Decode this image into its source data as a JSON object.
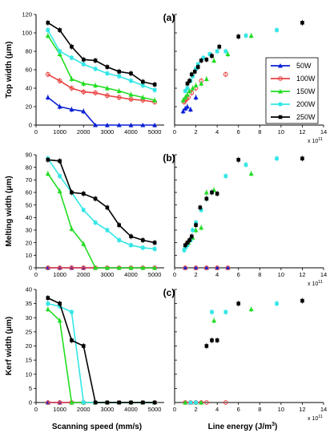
{
  "chart_data": {
    "type": "line",
    "grid": false,
    "colors": {
      "50W": "#0a1fd6",
      "100W": "#e84040",
      "150W": "#22dd22",
      "200W": "#33e6e6",
      "250W": "#000000"
    },
    "markers": {
      "50W": "triangle",
      "100W": "circle",
      "150W": "triangle",
      "200W": "square",
      "250W": "square"
    },
    "legend": {
      "placement": "top-right of panel (a) right subplot",
      "entries": [
        "50W",
        "100W",
        "150W",
        "200W",
        "250W"
      ]
    },
    "left_xlabel": "Scanning speed (mm/s)",
    "right_xlabel_main": "Line energy (J/m",
    "right_xlabel_sup": "3",
    "right_xlabel_close": ")",
    "left_xticks": [
      "0",
      "1000",
      "2000",
      "3000",
      "4000",
      "5000"
    ],
    "right_xticks": [
      "0",
      "2",
      "4",
      "6",
      "8",
      "10",
      "12",
      "14"
    ],
    "right_xmultiplier_base": "x 10",
    "right_xmultiplier_exp": "11",
    "left_xlim": [
      0,
      5400
    ],
    "right_xlim": [
      0,
      14
    ],
    "panels": [
      {
        "label": "(a)",
        "ylabel": "Top width (μm)",
        "ylim": [
          0,
          120
        ],
        "yticks": [
          "0",
          "20",
          "40",
          "60",
          "80",
          "100",
          "120"
        ],
        "left_series": [
          {
            "name": "50W",
            "x": [
              500,
              1000,
              1500,
              2000,
              2500,
              3000,
              3500,
              4000,
              4500,
              5000
            ],
            "y": [
              30,
              20,
              17,
              15,
              0,
              0,
              0,
              0,
              0,
              0
            ]
          },
          {
            "name": "100W",
            "x": [
              500,
              1000,
              1500,
              2000,
              2500,
              3000,
              3500,
              4000,
              4500,
              5000
            ],
            "y": [
              55,
              48,
              40,
              36,
              35,
              32,
              30,
              28,
              27,
              25
            ]
          },
          {
            "name": "150W",
            "x": [
              500,
              1000,
              1500,
              2000,
              2500,
              3000,
              3500,
              4000,
              4500,
              5000
            ],
            "y": [
              97,
              77,
              50,
              45,
              43,
              40,
              37,
              33,
              30,
              27
            ]
          },
          {
            "name": "200W",
            "x": [
              500,
              1000,
              1500,
              2000,
              2500,
              3000,
              3500,
              4000,
              4500,
              5000
            ],
            "y": [
              103,
              80,
              73,
              66,
              61,
              56,
              53,
              48,
              43,
              38
            ]
          },
          {
            "name": "250W",
            "x": [
              500,
              1000,
              1500,
              2000,
              2500,
              3000,
              3500,
              4000,
              4500,
              5000
            ],
            "y": [
              111,
              103,
              85,
              71,
              70,
              63,
              58,
              56,
              47,
              44
            ]
          }
        ],
        "right_series": [
          {
            "name": "50W",
            "x": [
              0.8,
              1.0,
              1.2,
              1.5,
              2.0
            ],
            "y": [
              15,
              18,
              20,
              17,
              30
            ]
          },
          {
            "name": "100W",
            "x": [
              0.9,
              1.0,
              1.1,
              1.3,
              1.6,
              2.0,
              2.5,
              4.8
            ],
            "y": [
              25,
              27,
              28,
              30,
              35,
              40,
              48,
              55
            ]
          },
          {
            "name": "150W",
            "x": [
              0.8,
              1.0,
              1.2,
              1.4,
              1.7,
              2.0,
              2.5,
              3.0,
              3.7,
              5.0,
              7.2
            ],
            "y": [
              27,
              30,
              33,
              37,
              40,
              43,
              45,
              50,
              70,
              77,
              97
            ]
          },
          {
            "name": "200W",
            "x": [
              1.0,
              1.2,
              1.5,
              1.7,
              2.0,
              2.2,
              2.7,
              3.3,
              4.0,
              4.8,
              6.7,
              9.6
            ],
            "y": [
              37,
              40,
              48,
              53,
              61,
              66,
              73,
              77,
              80,
              80,
              97,
              103
            ]
          },
          {
            "name": "250W",
            "x": [
              1.2,
              1.4,
              1.6,
              1.9,
              2.2,
              2.5,
              3.0,
              3.5,
              4.2,
              6.0,
              12.0
            ],
            "y": [
              45,
              48,
              55,
              58,
              63,
              70,
              71,
              75,
              85,
              96,
              111
            ]
          }
        ]
      },
      {
        "label": "(b)",
        "ylabel": "Melting width (μm)",
        "ylim": [
          0,
          90
        ],
        "yticks": [
          "0",
          "10",
          "20",
          "30",
          "40",
          "50",
          "60",
          "70",
          "80",
          "90"
        ],
        "left_series": [
          {
            "name": "50W",
            "x": [
              500,
              1000,
              1500,
              2000,
              2500,
              3000,
              3500,
              4000,
              4500,
              5000
            ],
            "y": [
              0,
              0,
              0,
              0,
              0,
              0,
              0,
              0,
              0,
              0
            ]
          },
          {
            "name": "100W",
            "x": [
              500,
              1000,
              1500,
              2000,
              2500,
              3000,
              3500,
              4000,
              4500,
              5000
            ],
            "y": [
              0,
              0,
              0,
              0,
              0,
              0,
              0,
              0,
              0,
              0
            ]
          },
          {
            "name": "150W",
            "x": [
              500,
              1000,
              1500,
              2000,
              2500,
              3000,
              3500,
              4000,
              4500,
              5000
            ],
            "y": [
              75,
              61,
              31,
              19,
              0,
              0,
              0,
              0,
              0,
              0
            ]
          },
          {
            "name": "200W",
            "x": [
              500,
              1000,
              1500,
              2000,
              2500,
              3000,
              3500,
              4000,
              4500,
              5000
            ],
            "y": [
              87,
              73,
              60,
              46,
              36,
              30,
              22,
              18,
              16,
              15
            ]
          },
          {
            "name": "250W",
            "x": [
              500,
              1000,
              1500,
              2000,
              2500,
              3000,
              3500,
              4000,
              4500,
              5000
            ],
            "y": [
              86,
              85,
              60,
              59,
              55,
              48,
              34,
              25,
              22,
              20
            ]
          }
        ],
        "right_series": [
          {
            "name": "50W",
            "x": [
              1,
              2,
              3,
              4,
              5
            ],
            "y": [
              0,
              0,
              0,
              0,
              0
            ]
          },
          {
            "name": "100W",
            "x": [
              1,
              2,
              3,
              4,
              5
            ],
            "y": [
              0,
              0,
              0,
              0,
              0
            ]
          },
          {
            "name": "150W",
            "x": [
              1.0,
              1.3,
              1.7,
              2.0,
              2.5,
              3.0,
              3.7,
              7.2
            ],
            "y": [
              17,
              20,
              24,
              30,
              32,
              60,
              62,
              75
            ]
          },
          {
            "name": "200W",
            "x": [
              0.9,
              1.0,
              1.2,
              1.5,
              1.7,
              2.0,
              2.5,
              3.0,
              3.5,
              4.8,
              6.7,
              9.6
            ],
            "y": [
              14,
              16,
              18,
              22,
              30,
              36,
              46,
              55,
              60,
              73,
              82,
              87
            ]
          },
          {
            "name": "250W",
            "x": [
              1.0,
              1.2,
              1.4,
              1.6,
              2.0,
              2.4,
              3.0,
              3.5,
              4.0,
              6.0,
              12.0
            ],
            "y": [
              18,
              20,
              22,
              25,
              34,
              48,
              55,
              60,
              59,
              86,
              87
            ]
          }
        ]
      },
      {
        "label": "(c)",
        "ylabel": "Kerf width (μm)",
        "ylim": [
          0,
          40
        ],
        "yticks": [
          "0",
          "5",
          "10",
          "15",
          "20",
          "25",
          "30",
          "35",
          "40"
        ],
        "left_series": [
          {
            "name": "50W",
            "x": [
              500,
              1000,
              1500,
              2000,
              2500,
              3000,
              3500,
              4000,
              4500,
              5000
            ],
            "y": [
              0,
              0,
              0,
              0,
              0,
              0,
              0,
              0,
              0,
              0
            ]
          },
          {
            "name": "100W",
            "x": [
              500,
              1000,
              1500,
              2000,
              2500,
              3000,
              3500,
              4000,
              4500,
              5000
            ],
            "y": [
              0,
              0,
              0,
              0,
              0,
              0,
              0,
              0,
              0,
              0
            ]
          },
          {
            "name": "150W",
            "x": [
              500,
              1000,
              1500,
              2000,
              2500,
              3000,
              3500,
              4000,
              4500,
              5000
            ],
            "y": [
              33,
              29,
              0,
              0,
              0,
              0,
              0,
              0,
              0,
              0
            ]
          },
          {
            "name": "200W",
            "x": [
              500,
              1000,
              1500,
              2000,
              2500,
              3000,
              3500,
              4000,
              4500,
              5000
            ],
            "y": [
              35,
              34,
              32,
              0,
              0,
              0,
              0,
              0,
              0,
              0
            ]
          },
          {
            "name": "250W",
            "x": [
              500,
              1000,
              1500,
              2000,
              2500,
              3000,
              3500,
              4000,
              4500,
              5000
            ],
            "y": [
              37,
              35,
              22,
              20,
              0,
              0,
              0,
              0,
              0,
              0
            ]
          }
        ],
        "right_series": [
          {
            "name": "50W",
            "x": [
              1,
              1.5,
              2,
              2.5
            ],
            "y": [
              0,
              0,
              0,
              0
            ]
          },
          {
            "name": "100W",
            "x": [
              1,
              1.5,
              2,
              2.5,
              3,
              4.8
            ],
            "y": [
              0,
              0,
              0,
              0,
              0,
              0
            ]
          },
          {
            "name": "150W",
            "x": [
              1,
              2,
              2.5,
              3.7,
              7.2
            ],
            "y": [
              0,
              0,
              0,
              29,
              33
            ]
          },
          {
            "name": "200W",
            "x": [
              1.5,
              2,
              3.5,
              4.8,
              9.6
            ],
            "y": [
              0,
              0,
              32,
              32,
              35
            ]
          },
          {
            "name": "250W",
            "x": [
              3.0,
              3.5,
              4.0,
              6.0,
              12.0
            ],
            "y": [
              20,
              22,
              22,
              35,
              36
            ]
          }
        ]
      }
    ]
  }
}
